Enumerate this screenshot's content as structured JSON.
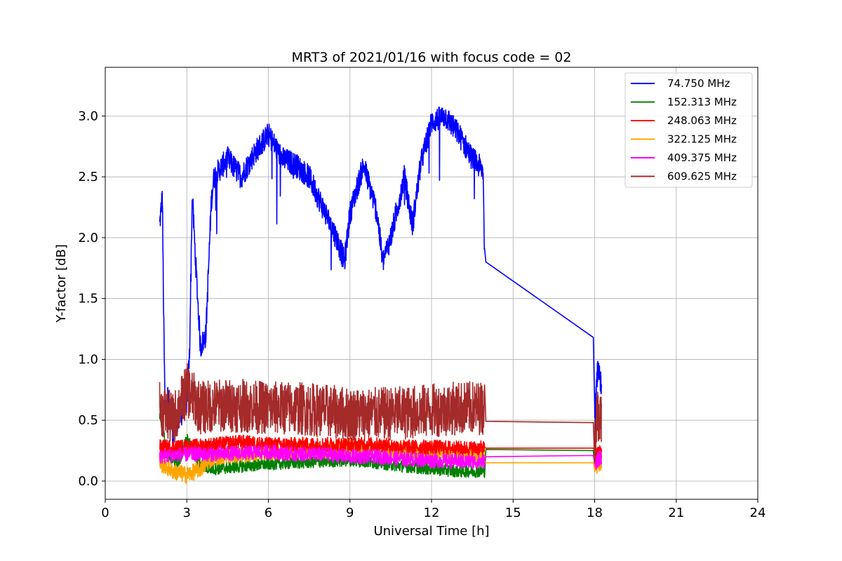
{
  "chart_data": {
    "type": "line",
    "title": "MRT3 of 2021/01/16 with focus code = 02",
    "xlabel": "Universal Time [h]",
    "ylabel": "Y-factor [dB]",
    "xlim": [
      0,
      24
    ],
    "ylim": [
      -0.15,
      3.4
    ],
    "xticks": [
      0,
      3,
      6,
      9,
      12,
      15,
      18,
      21,
      24
    ],
    "xtick_labels": [
      "0",
      "3",
      "6",
      "9",
      "12",
      "15",
      "18",
      "21",
      "24"
    ],
    "yticks": [
      0.0,
      0.5,
      1.0,
      1.5,
      2.0,
      2.5,
      3.0
    ],
    "ytick_labels": [
      "0.0",
      "0.5",
      "1.0",
      "1.5",
      "2.0",
      "2.5",
      "3.0"
    ],
    "grid": true,
    "legend_position": "top-right",
    "series": [
      {
        "name": " 74.750 MHz",
        "color": "#0000ff",
        "noise": 0.1,
        "x": [
          2.0,
          2.1,
          2.15,
          2.2,
          2.3,
          2.5,
          2.8,
          3.0,
          3.1,
          3.2,
          3.3,
          3.5,
          3.7,
          3.9,
          4.0,
          4.5,
          5.0,
          5.5,
          6.0,
          6.5,
          7.0,
          7.5,
          8.0,
          8.5,
          8.8,
          9.0,
          9.5,
          10.0,
          10.2,
          10.5,
          11.0,
          11.3,
          11.6,
          12.0,
          12.5,
          13.0,
          13.5,
          13.9,
          13.95,
          14.0,
          14.0,
          17.95,
          18.0,
          18.1,
          18.25
        ],
        "y": [
          2.1,
          2.35,
          1.3,
          0.6,
          0.7,
          0.45,
          0.55,
          0.65,
          1.05,
          2.35,
          1.9,
          1.1,
          1.2,
          2.3,
          2.5,
          2.65,
          2.5,
          2.7,
          2.85,
          2.65,
          2.6,
          2.5,
          2.25,
          2.0,
          1.8,
          2.2,
          2.6,
          2.2,
          1.8,
          2.0,
          2.5,
          2.1,
          2.6,
          2.95,
          3.0,
          2.85,
          2.65,
          2.55,
          1.85,
          1.8,
          1.22,
          1.18,
          0.6,
          0.9,
          0.8
        ]
      },
      {
        "name": "152.313 MHz",
        "color": "#008000",
        "noise": 0.05,
        "x": [
          2.0,
          2.3,
          2.7,
          3.0,
          3.5,
          4.0,
          5.0,
          6.0,
          7.0,
          8.0,
          9.0,
          10.0,
          11.0,
          12.0,
          13.0,
          13.95,
          14.0,
          17.95,
          18.0,
          18.25
        ],
        "y": [
          0.55,
          0.2,
          0.15,
          0.35,
          0.12,
          0.1,
          0.12,
          0.14,
          0.15,
          0.16,
          0.17,
          0.15,
          0.12,
          0.1,
          0.08,
          0.08,
          0.26,
          0.25,
          0.12,
          0.2
        ]
      },
      {
        "name": "248.063 MHz",
        "color": "#ff0000",
        "noise": 0.06,
        "x": [
          2.0,
          3.0,
          4.0,
          5.0,
          6.0,
          7.0,
          8.0,
          9.0,
          10.0,
          11.0,
          12.0,
          13.0,
          13.95,
          14.0,
          17.95,
          18.0,
          18.25
        ],
        "y": [
          0.28,
          0.28,
          0.3,
          0.32,
          0.3,
          0.3,
          0.3,
          0.3,
          0.3,
          0.28,
          0.28,
          0.27,
          0.27,
          0.27,
          0.27,
          0.2,
          0.25
        ]
      },
      {
        "name": "322.125 MHz",
        "color": "#ffa500",
        "noise": 0.07,
        "x": [
          2.0,
          2.5,
          3.0,
          3.5,
          4.0,
          5.0,
          6.0,
          7.0,
          8.0,
          9.0,
          10.0,
          11.0,
          12.0,
          13.0,
          13.95,
          14.0,
          17.95,
          18.0,
          18.25
        ],
        "y": [
          0.15,
          0.08,
          0.05,
          0.1,
          0.2,
          0.22,
          0.24,
          0.25,
          0.25,
          0.28,
          0.26,
          0.24,
          0.23,
          0.2,
          0.2,
          0.15,
          0.15,
          0.12,
          0.15
        ]
      },
      {
        "name": "409.375 MHz",
        "color": "#ff00ff",
        "noise": 0.06,
        "x": [
          2.0,
          3.0,
          4.0,
          5.0,
          6.0,
          7.0,
          8.0,
          9.0,
          10.0,
          11.0,
          12.0,
          13.0,
          13.95,
          14.0,
          17.95,
          18.0,
          18.25
        ],
        "y": [
          0.2,
          0.22,
          0.22,
          0.23,
          0.24,
          0.22,
          0.22,
          0.2,
          0.2,
          0.18,
          0.17,
          0.16,
          0.16,
          0.2,
          0.21,
          0.15,
          0.2
        ]
      },
      {
        "name": "609.625 MHz",
        "color": "#a52a2a",
        "noise": 0.22,
        "x": [
          2.0,
          2.5,
          3.0,
          3.5,
          4.0,
          5.0,
          6.0,
          7.0,
          8.0,
          9.0,
          10.0,
          11.0,
          12.0,
          13.0,
          13.95,
          14.0,
          17.95,
          18.0,
          18.1,
          18.25
        ],
        "y": [
          0.6,
          0.5,
          0.75,
          0.6,
          0.62,
          0.62,
          0.6,
          0.6,
          0.58,
          0.55,
          0.55,
          0.56,
          0.58,
          0.6,
          0.6,
          0.49,
          0.48,
          0.35,
          0.55,
          0.5
        ]
      }
    ]
  }
}
